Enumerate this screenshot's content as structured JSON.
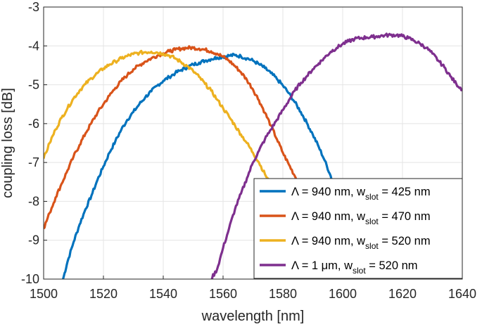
{
  "chart_data": {
    "type": "line",
    "title": "",
    "xlabel": "wavelength [nm]",
    "ylabel": "coupling loss [dB]",
    "xlim": [
      1500,
      1640
    ],
    "ylim": [
      -10,
      -3
    ],
    "grid": true,
    "legend_position": "bottom-right",
    "xticks": [
      1500,
      1520,
      1540,
      1560,
      1580,
      1600,
      1620,
      1640
    ],
    "yticks": [
      -3,
      -4,
      -5,
      -6,
      -7,
      -8,
      -9,
      -10
    ],
    "xtick_labels": [
      "1500",
      "1520",
      "1540",
      "1560",
      "1580",
      "1600",
      "1620",
      "1640"
    ],
    "ytick_labels": [
      "-3",
      "-4",
      "-5",
      "-6",
      "-7",
      "-8",
      "-9",
      "-10"
    ],
    "series": [
      {
        "name": "Λ = 940 nm, w_slot = 425 nm",
        "label_main": "Λ = 940 nm, w",
        "label_sub": "slot",
        "label_tail": " = 425 nm",
        "color": "#0072BD",
        "x": [
          1506.5,
          1508,
          1510,
          1512,
          1514,
          1516,
          1518,
          1520,
          1522,
          1524,
          1526,
          1528,
          1530,
          1532,
          1534,
          1536,
          1538,
          1540,
          1542,
          1544,
          1546,
          1548,
          1550,
          1552,
          1554,
          1556,
          1558,
          1560,
          1562,
          1564,
          1566,
          1568,
          1570,
          1572,
          1574,
          1576,
          1578,
          1580,
          1582,
          1584,
          1586,
          1588,
          1590,
          1592,
          1594,
          1596,
          1597
        ],
        "y": [
          -10,
          -9.55,
          -9.05,
          -8.6,
          -8.2,
          -7.85,
          -7.45,
          -7.1,
          -6.75,
          -6.45,
          -6.15,
          -5.9,
          -5.7,
          -5.5,
          -5.32,
          -5.17,
          -5.02,
          -4.9,
          -4.8,
          -4.7,
          -4.62,
          -4.55,
          -4.48,
          -4.43,
          -4.38,
          -4.34,
          -4.3,
          -4.28,
          -4.25,
          -4.24,
          -4.27,
          -4.32,
          -4.38,
          -4.47,
          -4.57,
          -4.7,
          -4.85,
          -5.02,
          -5.22,
          -5.45,
          -5.7,
          -5.98,
          -6.28,
          -6.6,
          -6.95,
          -7.35,
          -7.55
        ]
      },
      {
        "name": "Λ = 940 nm, w_slot = 470 nm",
        "label_main": "Λ = 940 nm, w",
        "label_sub": "slot",
        "label_tail": " = 470 nm",
        "color": "#D95319",
        "x": [
          1500,
          1502,
          1504,
          1506,
          1508,
          1510,
          1512,
          1514,
          1516,
          1518,
          1520,
          1522,
          1524,
          1526,
          1528,
          1530,
          1532,
          1534,
          1536,
          1538,
          1540,
          1542,
          1544,
          1546,
          1548,
          1550,
          1552,
          1554,
          1556,
          1558,
          1560,
          1562,
          1564,
          1566,
          1568,
          1570,
          1572,
          1574,
          1576,
          1578,
          1580,
          1582,
          1584,
          1586
        ],
        "y": [
          -8.7,
          -8.3,
          -7.9,
          -7.55,
          -7.2,
          -6.85,
          -6.55,
          -6.25,
          -5.98,
          -5.72,
          -5.5,
          -5.28,
          -5.08,
          -4.9,
          -4.75,
          -4.6,
          -4.5,
          -4.4,
          -4.32,
          -4.25,
          -4.19,
          -4.14,
          -4.1,
          -4.07,
          -4.05,
          -4.05,
          -4.07,
          -4.1,
          -4.14,
          -4.2,
          -4.28,
          -4.38,
          -4.52,
          -4.68,
          -4.88,
          -5.12,
          -5.4,
          -5.72,
          -6.05,
          -6.4,
          -6.75,
          -7.05,
          -7.35,
          -7.6
        ]
      },
      {
        "name": "Λ = 940 nm, w_slot = 520 nm",
        "label_main": "Λ = 940 nm, w",
        "label_sub": "slot",
        "label_tail": " = 520 nm",
        "color": "#EDB120",
        "x": [
          1500,
          1502,
          1504,
          1506,
          1508,
          1510,
          1512,
          1514,
          1516,
          1518,
          1520,
          1522,
          1524,
          1526,
          1528,
          1530,
          1532,
          1534,
          1536,
          1538,
          1540,
          1542,
          1544,
          1546,
          1548,
          1550,
          1552,
          1554,
          1556,
          1558,
          1560,
          1562,
          1564,
          1566,
          1568,
          1570,
          1572,
          1574,
          1576
        ],
        "y": [
          -6.9,
          -6.5,
          -6.15,
          -5.85,
          -5.6,
          -5.35,
          -5.15,
          -4.98,
          -4.83,
          -4.7,
          -4.58,
          -4.48,
          -4.4,
          -4.32,
          -4.26,
          -4.21,
          -4.18,
          -4.16,
          -4.15,
          -4.17,
          -4.2,
          -4.25,
          -4.32,
          -4.42,
          -4.52,
          -4.65,
          -4.8,
          -4.98,
          -5.15,
          -5.38,
          -5.6,
          -5.82,
          -6.05,
          -6.28,
          -6.5,
          -6.75,
          -7.0,
          -7.3,
          -7.55
        ]
      },
      {
        "name": "Λ = 1 μm, w_slot = 520 nm",
        "label_main": "Λ = 1 μm,     w",
        "label_sub": "slot",
        "label_tail": " = 520 nm",
        "color": "#7E2F8E",
        "x": [
          1556,
          1558,
          1560,
          1562,
          1564,
          1566,
          1568,
          1570,
          1572,
          1574,
          1576,
          1578,
          1580,
          1582,
          1584,
          1586,
          1588,
          1590,
          1592,
          1594,
          1596,
          1598,
          1600,
          1602,
          1604,
          1606,
          1608,
          1610,
          1612,
          1614,
          1616,
          1618,
          1620,
          1622,
          1624,
          1626,
          1628,
          1630,
          1632,
          1634,
          1636,
          1638,
          1640
        ],
        "y": [
          -10,
          -9.75,
          -9.2,
          -8.7,
          -8.2,
          -7.8,
          -7.4,
          -7.0,
          -6.7,
          -6.4,
          -6.15,
          -5.9,
          -5.65,
          -5.4,
          -5.15,
          -4.95,
          -4.78,
          -4.6,
          -4.45,
          -4.3,
          -4.15,
          -4.05,
          -3.95,
          -3.88,
          -3.82,
          -3.8,
          -3.78,
          -3.77,
          -3.75,
          -3.73,
          -3.72,
          -3.72,
          -3.75,
          -3.8,
          -3.87,
          -3.95,
          -4.05,
          -4.2,
          -4.38,
          -4.55,
          -4.78,
          -4.98,
          -5.12
        ]
      }
    ]
  }
}
